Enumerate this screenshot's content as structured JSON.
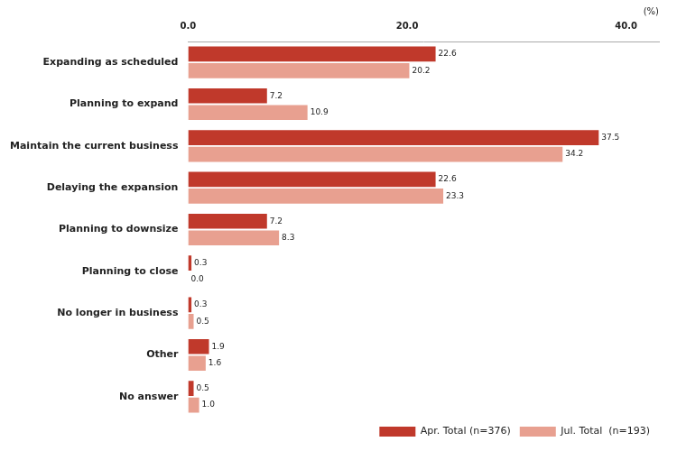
{
  "chart_data": {
    "type": "bar",
    "orientation": "horizontal",
    "categories": [
      "Expanding as scheduled",
      "Planning to expand",
      "Maintain the current business",
      "Delaying the expansion",
      "Planning to downsize",
      "Planning to close",
      "No longer in business",
      "Other",
      "No answer"
    ],
    "series": [
      {
        "name": "Apr. Total (n=376)",
        "color": "#c0392b",
        "values": [
          22.6,
          7.2,
          37.5,
          22.6,
          7.2,
          0.3,
          0.3,
          1.9,
          0.5
        ],
        "value_labels": [
          "22.6",
          "7.2",
          "37.5",
          "22.6",
          "7.2",
          "0.3",
          "0.3",
          "1.9",
          "0.5"
        ]
      },
      {
        "name": "Jul. Total  (n=193)",
        "color": "#e8a090",
        "values": [
          20.2,
          10.9,
          34.2,
          23.3,
          8.3,
          0.0,
          0.5,
          1.6,
          1.0
        ],
        "value_labels": [
          "20.2",
          "10.9",
          "34.2",
          "23.3",
          "8.3",
          "0.0",
          "0.5",
          "1.6",
          "1.0"
        ]
      }
    ],
    "xlim": [
      0,
      43
    ],
    "xticks": [
      {
        "value": 0,
        "label": "0.0"
      },
      {
        "value": 20,
        "label": "20.0"
      },
      {
        "value": 40,
        "label": "40.0"
      }
    ],
    "data_labels": true,
    "grid": false,
    "legend": "lower right",
    "annotations": [
      "(%)"
    ]
  }
}
